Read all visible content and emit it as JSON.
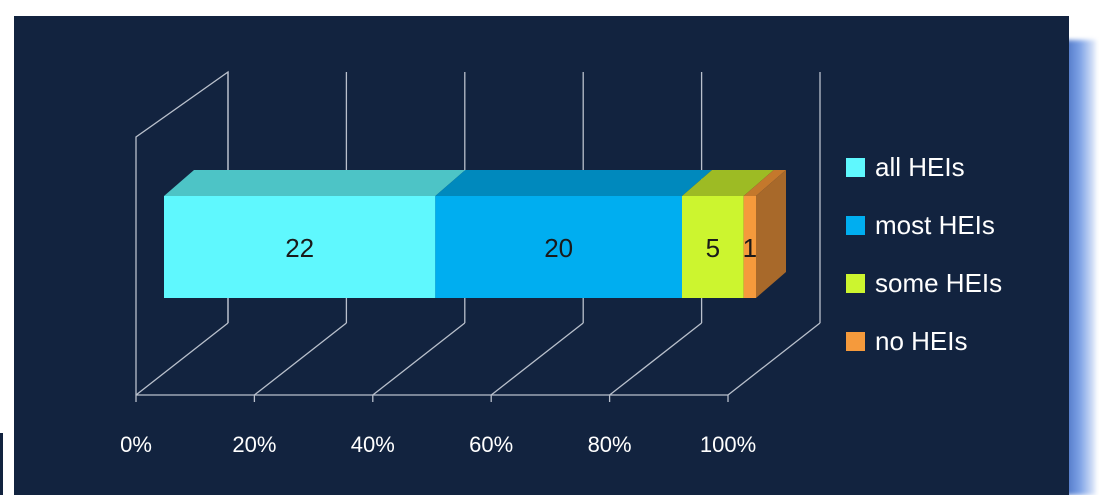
{
  "chart_data": {
    "type": "bar",
    "orientation": "horizontal",
    "stacking": "percent",
    "three_d": true,
    "categories": [
      ""
    ],
    "series": [
      {
        "name": "all HEIs",
        "values": [
          22
        ],
        "color": "#5ff8fe",
        "top": "#4dc4c6",
        "side": "#3aa8b0"
      },
      {
        "name": "most HEIs",
        "values": [
          20
        ],
        "color": "#00aef0",
        "top": "#0089bd",
        "side": "#0077a8"
      },
      {
        "name": "some HEIs",
        "values": [
          5
        ],
        "color": "#ccf52f",
        "top": "#9dbb24",
        "side": "#8aa51e"
      },
      {
        "name": "no HEIs",
        "values": [
          1
        ],
        "color": "#f59a3c",
        "top": "#c4782c",
        "side": "#a8692a"
      }
    ],
    "x_ticks": [
      "0%",
      "20%",
      "40%",
      "60%",
      "80%",
      "100%"
    ],
    "xlim": [
      0,
      100
    ],
    "grid": true,
    "legend": "right",
    "background": "#12233f",
    "axis_color": "#b9c0cc"
  }
}
